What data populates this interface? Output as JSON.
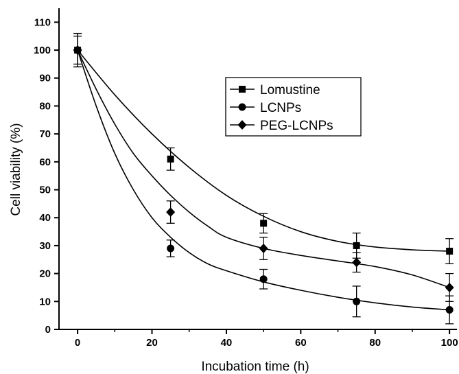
{
  "chart_data": {
    "type": "scatter",
    "xlabel": "Incubation time (h)",
    "ylabel": "Cell viability (%)",
    "xlim": [
      -5,
      102
    ],
    "ylim": [
      0,
      115
    ],
    "x_ticks": [
      0,
      20,
      40,
      60,
      80,
      100
    ],
    "y_ticks": [
      0,
      10,
      20,
      30,
      40,
      50,
      60,
      70,
      80,
      90,
      100,
      110
    ],
    "legend_position": "top-right",
    "grid": false,
    "fit_curves": true,
    "series": [
      {
        "name": "Lomustine",
        "marker": "square",
        "x": [
          0,
          25,
          50,
          75,
          100
        ],
        "y": [
          100,
          61,
          38,
          30,
          28
        ],
        "error": [
          6,
          4,
          3.5,
          4.5,
          4.5
        ],
        "fit": [
          [
            0,
            100
          ],
          [
            10,
            84
          ],
          [
            20,
            70
          ],
          [
            30,
            58
          ],
          [
            40,
            48
          ],
          [
            50,
            40.5
          ],
          [
            60,
            35
          ],
          [
            70,
            31.5
          ],
          [
            80,
            29.5
          ],
          [
            90,
            28.5
          ],
          [
            100,
            28
          ]
        ]
      },
      {
        "name": "LCNPs",
        "marker": "circle",
        "x": [
          0,
          25,
          50,
          75,
          100
        ],
        "y": [
          100,
          29,
          18,
          10,
          7
        ],
        "error": [
          6,
          3,
          3.5,
          5.5,
          5
        ],
        "fit": [
          [
            0,
            100
          ],
          [
            5,
            80
          ],
          [
            10,
            63
          ],
          [
            15,
            50
          ],
          [
            20,
            40
          ],
          [
            25,
            33
          ],
          [
            30,
            27.5
          ],
          [
            35,
            23.5
          ],
          [
            40,
            21
          ],
          [
            50,
            17
          ],
          [
            60,
            14
          ],
          [
            70,
            11.5
          ],
          [
            80,
            9.5
          ],
          [
            90,
            8
          ],
          [
            100,
            7
          ]
        ]
      },
      {
        "name": "PEG-LCNPs",
        "marker": "diamond",
        "x": [
          0,
          25,
          50,
          75,
          100
        ],
        "y": [
          100,
          42,
          29,
          24,
          15
        ],
        "error": [
          5,
          4,
          4,
          3.5,
          5
        ],
        "fit": [
          [
            0,
            100
          ],
          [
            5,
            86
          ],
          [
            10,
            73.5
          ],
          [
            15,
            63
          ],
          [
            20,
            55
          ],
          [
            25,
            48
          ],
          [
            30,
            42
          ],
          [
            35,
            37
          ],
          [
            40,
            33
          ],
          [
            50,
            29
          ],
          [
            60,
            26.5
          ],
          [
            70,
            24.5
          ],
          [
            80,
            22.5
          ],
          [
            90,
            19.5
          ],
          [
            100,
            15
          ]
        ]
      }
    ]
  }
}
